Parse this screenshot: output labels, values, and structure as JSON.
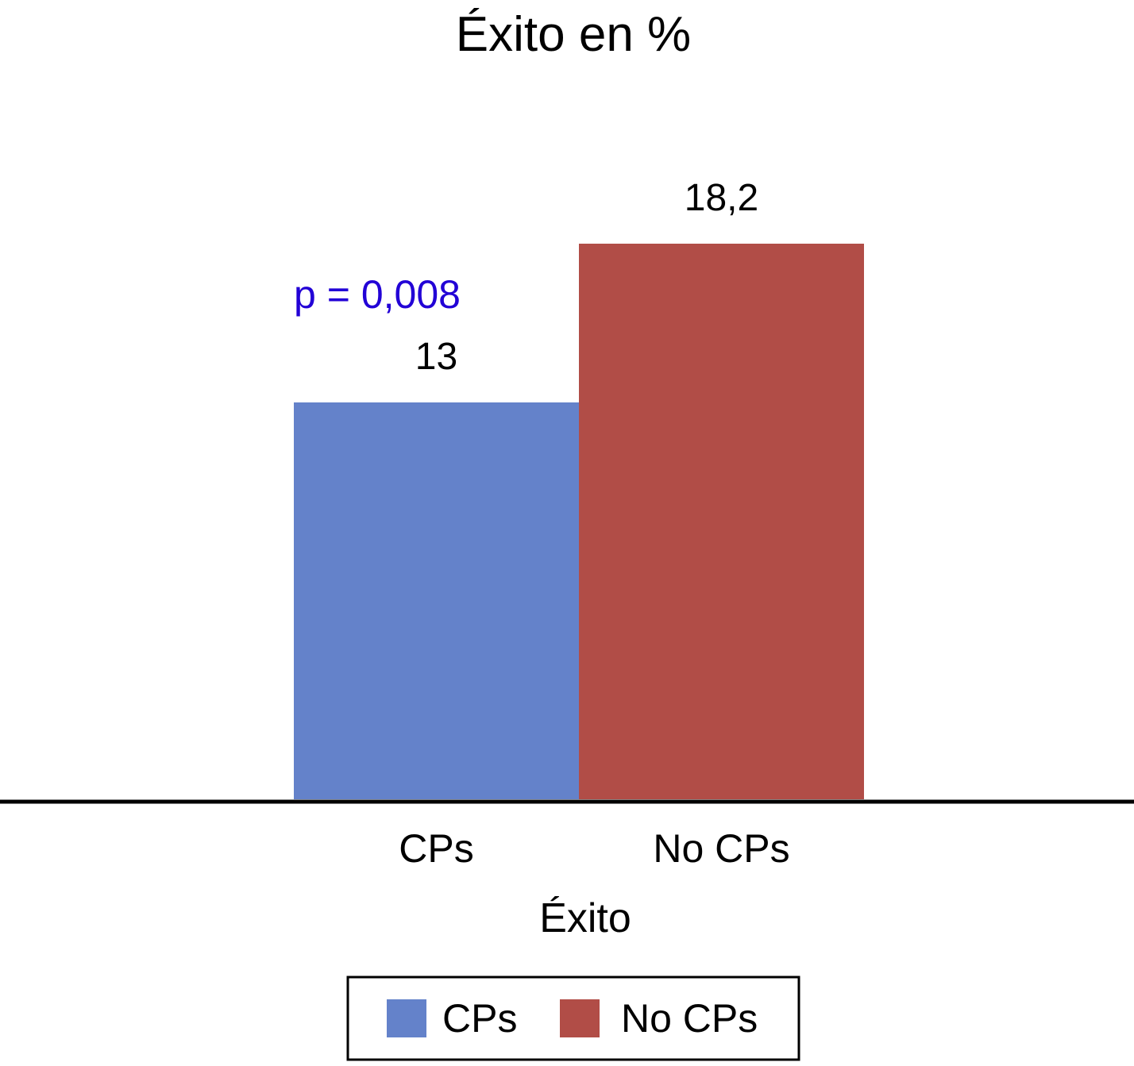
{
  "chart_data": {
    "type": "bar",
    "title": "Éxito en %",
    "xlabel": "Éxito",
    "ylabel": "",
    "categories": [
      "CPs",
      "No CPs"
    ],
    "values": [
      13,
      18.2
    ],
    "value_labels": [
      "13",
      "18,2"
    ],
    "colors": [
      "#6482ca",
      "#b14d47"
    ],
    "ylim": [
      0,
      26
    ],
    "annotation": {
      "text": "p = 0,008",
      "color": "#2200d6"
    },
    "legend": {
      "placement": "bottom-center",
      "entries": [
        "CPs",
        "No CPs"
      ]
    },
    "grid": false
  }
}
